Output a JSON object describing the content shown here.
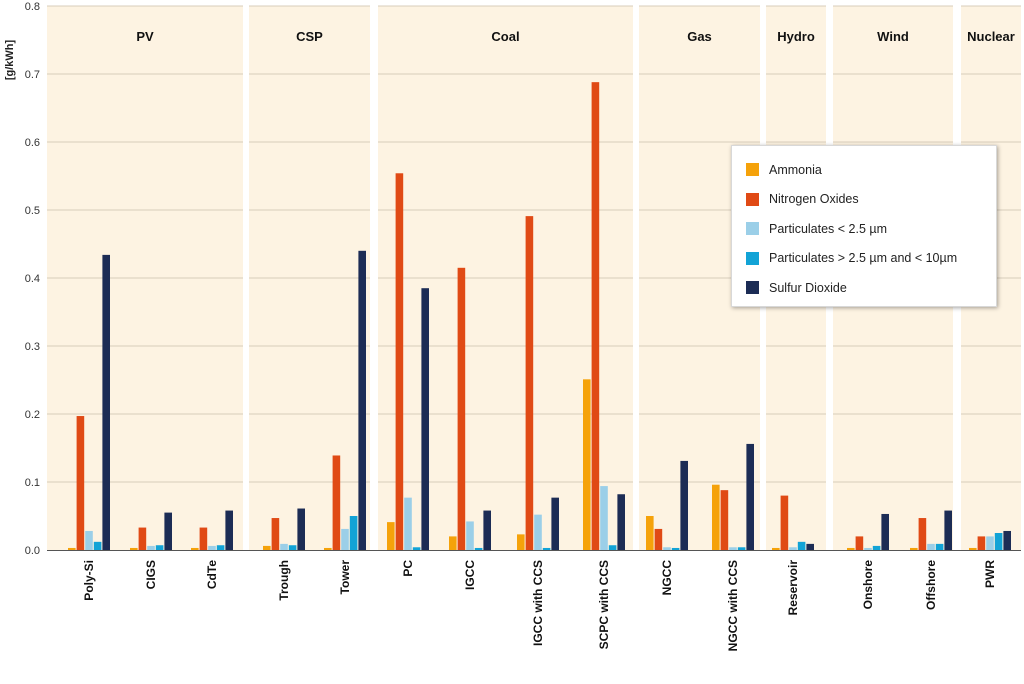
{
  "chart_data": {
    "type": "bar",
    "ylabel": "[g/kWh]",
    "ylim": [
      0,
      0.8
    ],
    "yticks": [
      "0.0",
      "0.1",
      "0.2",
      "0.3",
      "0.4",
      "0.5",
      "0.6",
      "0.7",
      "0.8"
    ],
    "grid": true,
    "legend_position": "top-right",
    "series": [
      {
        "name": "Ammonia",
        "color": "#f5a20a"
      },
      {
        "name": "Nitrogen Oxides",
        "color": "#e04a15"
      },
      {
        "name": "Particulates < 2.5 µm",
        "color": "#9bcfe8"
      },
      {
        "name": "Particulates > 2.5 µm and < 10µm",
        "color": "#12a3d6"
      },
      {
        "name": "Sulfur Dioxide",
        "color": "#1c2c55"
      }
    ],
    "groups": [
      {
        "name": "PV",
        "categories": [
          {
            "label": "Poly-Si",
            "values": [
              0.003,
              0.197,
              0.028,
              0.012,
              0.434
            ]
          },
          {
            "label": "CIGS",
            "values": [
              0.003,
              0.033,
              0.006,
              0.007,
              0.055
            ]
          },
          {
            "label": "CdTe",
            "values": [
              0.003,
              0.033,
              0.006,
              0.007,
              0.058
            ]
          }
        ]
      },
      {
        "name": "CSP",
        "categories": [
          {
            "label": "Trough",
            "values": [
              0.006,
              0.047,
              0.009,
              0.007,
              0.061
            ]
          },
          {
            "label": "Tower",
            "values": [
              0.003,
              0.139,
              0.031,
              0.05,
              0.44
            ]
          }
        ]
      },
      {
        "name": "Coal",
        "categories": [
          {
            "label": "PC",
            "values": [
              0.041,
              0.554,
              0.077,
              0.004,
              0.385
            ]
          },
          {
            "label": "IGCC",
            "values": [
              0.02,
              0.415,
              0.042,
              0.003,
              0.058
            ]
          },
          {
            "label": "IGCC with CCS",
            "values": [
              0.023,
              0.491,
              0.052,
              0.003,
              0.077
            ]
          },
          {
            "label": "SCPC with CCS",
            "values": [
              0.251,
              0.688,
              0.094,
              0.007,
              0.082
            ]
          }
        ]
      },
      {
        "name": "Gas",
        "categories": [
          {
            "label": "NGCC",
            "values": [
              0.05,
              0.031,
              0.004,
              0.003,
              0.131
            ]
          },
          {
            "label": "NGCC with CCS",
            "values": [
              0.096,
              0.088,
              0.004,
              0.004,
              0.156
            ]
          }
        ]
      },
      {
        "name": "Hydro",
        "categories": [
          {
            "label": "Reservoir",
            "values": [
              0.003,
              0.08,
              0.004,
              0.012,
              0.009
            ]
          }
        ]
      },
      {
        "name": "Wind",
        "categories": [
          {
            "label": "Onshore",
            "values": [
              0.003,
              0.02,
              0.003,
              0.006,
              0.053
            ]
          },
          {
            "label": "Offshore",
            "values": [
              0.003,
              0.047,
              0.009,
              0.009,
              0.058
            ]
          }
        ]
      },
      {
        "name": "Nuclear",
        "categories": [
          {
            "label": "PWR",
            "values": [
              0.003,
              0.02,
              0.02,
              0.025,
              0.028
            ]
          }
        ]
      }
    ]
  }
}
